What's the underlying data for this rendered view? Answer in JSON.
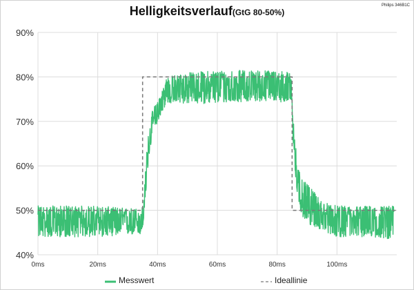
{
  "device_label": "Philips 346B1C",
  "chart_data": {
    "type": "line",
    "title": "Helligkeitsverlauf",
    "subtitle": "(GtG 80-50%)",
    "xlabel": "",
    "ylabel": "",
    "xlim": [
      0,
      120
    ],
    "ylim": [
      40,
      90
    ],
    "x_ticks": [
      "0ms",
      "20ms",
      "40ms",
      "60ms",
      "80ms",
      "100ms"
    ],
    "y_ticks": [
      "40%",
      "50%",
      "60%",
      "70%",
      "80%",
      "90%"
    ],
    "grid": true,
    "legend_position": "bottom",
    "series": [
      {
        "name": "Messwert",
        "color": "#3bbf74",
        "style": "solid",
        "x": [
          0,
          10,
          20,
          30,
          34.8,
          35.8,
          36.5,
          38,
          40,
          41.5,
          43,
          50,
          60,
          70,
          80,
          84.7,
          85.2,
          86,
          87,
          88,
          90,
          95,
          100,
          110,
          119
        ],
        "y": [
          47.5,
          47.5,
          47.5,
          47.5,
          47.5,
          53,
          61,
          68,
          72,
          74,
          77,
          77.5,
          78,
          78,
          78,
          77.5,
          70,
          62,
          56,
          53,
          51.5,
          49,
          47.5,
          47.5,
          47.5
        ],
        "y_min": [
          44,
          44,
          44,
          44.5,
          44.5,
          50,
          58,
          66,
          70,
          72,
          74,
          74,
          74,
          74.5,
          74.5,
          74,
          66,
          58,
          52,
          49,
          47,
          45.5,
          44,
          44,
          43.5
        ],
        "y_max": [
          51,
          51,
          51,
          50.5,
          50.5,
          57,
          65,
          72,
          75,
          77,
          80,
          81,
          81.5,
          81.5,
          81.5,
          81,
          74,
          66,
          60,
          57,
          56,
          52,
          51,
          51,
          51
        ]
      },
      {
        "name": "Ideallinie",
        "color": "#777777",
        "style": "dashed",
        "x": [
          0,
          35,
          35,
          85,
          85,
          120
        ],
        "y": [
          50,
          50,
          80,
          80,
          50,
          50
        ]
      }
    ]
  }
}
